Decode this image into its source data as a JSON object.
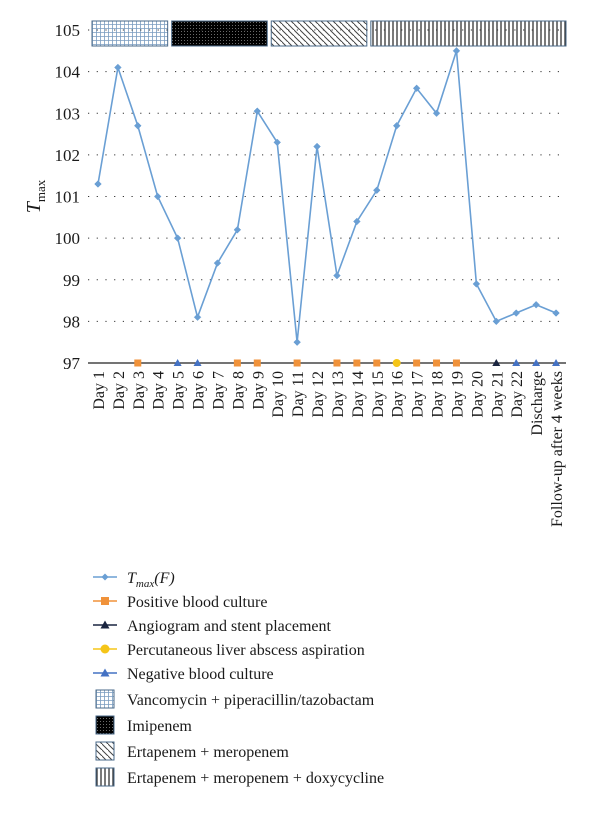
{
  "chart_data": {
    "type": "line",
    "ylabel": "T",
    "ylabel_subscript": "max",
    "ylim": [
      97,
      105
    ],
    "yticks": [
      97,
      98,
      99,
      100,
      101,
      102,
      103,
      104,
      105
    ],
    "grid": "horizontal dotted",
    "categories": [
      "Day 1",
      "Day 2",
      "Day 3",
      "Day 4",
      "Day 5",
      "Day 6",
      "Day 7",
      "Day 8",
      "Day 9",
      "Day 10",
      "Day 11",
      "Day 12",
      "Day 13",
      "Day 14",
      "Day 15",
      "Day 16",
      "Day 17",
      "Day 18",
      "Day 19",
      "Day 20",
      "Day 21",
      "Day 22",
      "Discharge",
      "Follow-up after 4 weeks"
    ],
    "series": [
      {
        "name": "Tmax(F)",
        "color": "#6a9fd4",
        "marker": "diamond",
        "values": [
          101.3,
          104.1,
          102.7,
          101.0,
          100.0,
          98.1,
          99.4,
          100.2,
          103.05,
          102.3,
          97.5,
          102.2,
          99.1,
          100.4,
          101.15,
          102.7,
          103.6,
          103.0,
          104.5,
          98.9,
          98.0,
          98.2,
          98.4,
          98.2
        ]
      }
    ],
    "event_markers": [
      {
        "name": "Positive blood culture",
        "color": "#f0923a",
        "marker": "square",
        "categories": [
          "Day 3",
          "Day 8",
          "Day 9",
          "Day 11",
          "Day 13",
          "Day 14",
          "Day 15",
          "Day 17",
          "Day 18",
          "Day 19"
        ]
      },
      {
        "name": "Angiogram and stent placement",
        "color": "#1a2540",
        "marker": "triangle",
        "categories": [
          "Day 21"
        ]
      },
      {
        "name": "Percutaneous liver abscess aspiration",
        "color": "#f5c518",
        "marker": "circle",
        "categories": [
          "Day 16"
        ]
      },
      {
        "name": "Negative blood culture",
        "color": "#4472c4",
        "marker": "triangle",
        "categories": [
          "Day 5",
          "Day 6",
          "Day 22",
          "Discharge",
          "Follow-up after 4 weeks"
        ]
      }
    ],
    "treatment_bands": [
      {
        "name": "Vancomycin + piperacillin/tazobactam",
        "pattern": "grid",
        "start_category": "Day 1",
        "end_category": "Day 4"
      },
      {
        "name": "Imipenem",
        "pattern": "dense-dots",
        "start_category": "Day 5",
        "end_category": "Day 9"
      },
      {
        "name": "Ertapenem + meropenem",
        "pattern": "diagonal",
        "start_category": "Day 10",
        "end_category": "Day 14"
      },
      {
        "name": "Ertapenem + meropenem + doxycycline",
        "pattern": "vertical",
        "start_category": "Day 15",
        "end_category": "Follow-up after 4 weeks"
      }
    ],
    "legend_placement": "bottom-left"
  }
}
